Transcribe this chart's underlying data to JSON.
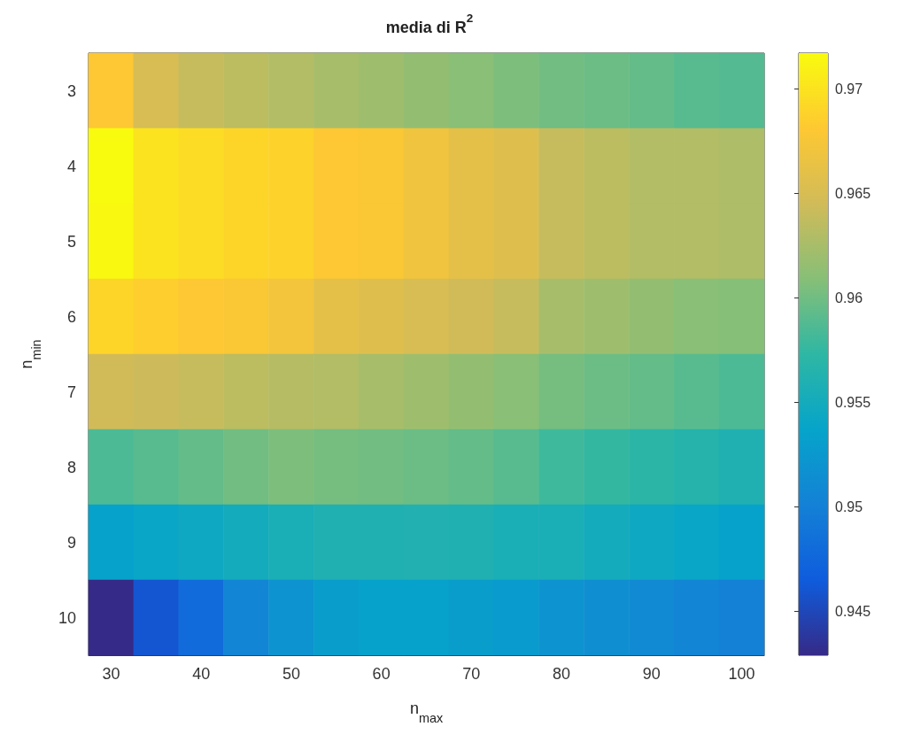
{
  "chart_data": {
    "type": "heatmap",
    "title": "media di R$^{2}$",
    "xlabel": "n$_{max}$",
    "ylabel": "n$_{min}$",
    "categories": [
      "30",
      null,
      "40",
      null,
      "50",
      null,
      "60",
      null,
      "70",
      null,
      "80",
      null,
      "90",
      null,
      "100"
    ],
    "y_categories": [
      "3",
      "4",
      "5",
      "6",
      "7",
      "8",
      "9",
      "10"
    ],
    "cells": [
      [
        0.968,
        0.965,
        0.964,
        0.9635,
        0.963,
        0.9625,
        0.962,
        0.9615,
        0.961,
        0.9605,
        0.96,
        0.9598,
        0.9595,
        0.959,
        0.9588
      ],
      [
        0.9717,
        0.97,
        0.9695,
        0.969,
        0.9688,
        0.968,
        0.9678,
        0.967,
        0.966,
        0.9655,
        0.964,
        0.9635,
        0.963,
        0.963,
        0.9628
      ],
      [
        0.9715,
        0.97,
        0.9695,
        0.969,
        0.9688,
        0.968,
        0.9678,
        0.967,
        0.966,
        0.9655,
        0.964,
        0.9635,
        0.963,
        0.963,
        0.9628
      ],
      [
        0.969,
        0.9685,
        0.968,
        0.9678,
        0.9672,
        0.966,
        0.9655,
        0.965,
        0.9645,
        0.964,
        0.9625,
        0.962,
        0.9615,
        0.961,
        0.9608
      ],
      [
        0.9645,
        0.9643,
        0.964,
        0.9635,
        0.9632,
        0.963,
        0.9625,
        0.962,
        0.9615,
        0.961,
        0.9602,
        0.9598,
        0.9595,
        0.959,
        0.9585
      ],
      [
        0.9585,
        0.959,
        0.9595,
        0.96,
        0.9605,
        0.9602,
        0.96,
        0.9598,
        0.9595,
        0.959,
        0.958,
        0.9575,
        0.957,
        0.9565,
        0.956
      ],
      [
        0.9535,
        0.954,
        0.9545,
        0.955,
        0.9555,
        0.956,
        0.956,
        0.9562,
        0.956,
        0.9555,
        0.9555,
        0.955,
        0.9545,
        0.954,
        0.9535
      ],
      [
        0.9429,
        0.946,
        0.948,
        0.9505,
        0.952,
        0.953,
        0.9535,
        0.9535,
        0.953,
        0.9528,
        0.952,
        0.9515,
        0.951,
        0.9505,
        0.95
      ]
    ],
    "clim": [
      0.9429,
      0.9717
    ],
    "cticks": [
      0.945,
      0.95,
      0.955,
      0.96,
      0.965,
      0.97
    ]
  }
}
